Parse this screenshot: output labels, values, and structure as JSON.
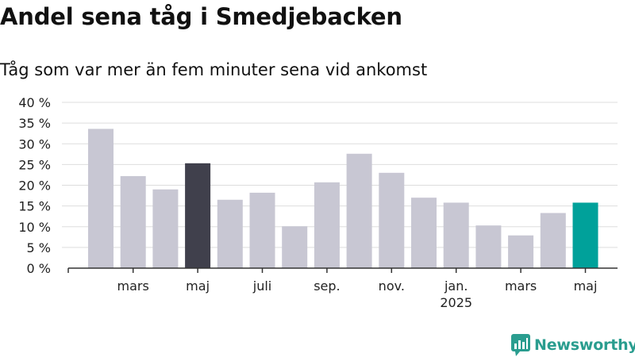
{
  "title": "Andel sena tåg i Smedjebacken",
  "subtitle": "Tåg som var mer än fem minuter sena vid ankomst",
  "brand": "Newsworthy",
  "colors": {
    "bar_default": "#c8c7d3",
    "bar_highlight_dark": "#40404c",
    "bar_highlight_teal": "#00a19a",
    "grid": "#dddddd",
    "axis": "#333333",
    "brand": "#2a9d8f"
  },
  "chart_data": {
    "type": "bar",
    "categories": [
      "2024-02",
      "2024-03",
      "2024-04",
      "2024-05",
      "2024-06",
      "2024-07",
      "2024-08",
      "2024-09",
      "2024-10",
      "2024-11",
      "2024-12",
      "2025-01",
      "2025-02",
      "2025-03",
      "2025-04",
      "2025-05"
    ],
    "values": [
      33.6,
      22.2,
      19.0,
      25.3,
      16.5,
      18.2,
      10.1,
      20.7,
      27.6,
      23.0,
      17.0,
      15.8,
      10.3,
      7.9,
      13.3,
      15.8
    ],
    "highlight": [
      {
        "category": "2024-05",
        "color": "#40404c"
      },
      {
        "category": "2025-05",
        "color": "#00a19a"
      }
    ],
    "ylim": [
      0,
      40
    ],
    "yticks": [
      {
        "value": 0,
        "label": "0 %"
      },
      {
        "value": 5,
        "label": "5 %"
      },
      {
        "value": 10,
        "label": "10 %"
      },
      {
        "value": 15,
        "label": "15 %"
      },
      {
        "value": 20,
        "label": "20 %"
      },
      {
        "value": 25,
        "label": "25 %"
      },
      {
        "value": 30,
        "label": "30 %"
      },
      {
        "value": 35,
        "label": "35 %"
      },
      {
        "value": 40,
        "label": "40 %"
      }
    ],
    "xticks": [
      {
        "category": "2024-03",
        "label": "mars"
      },
      {
        "category": "2024-05",
        "label": "maj"
      },
      {
        "category": "2024-07",
        "label": "juli"
      },
      {
        "category": "2024-09",
        "label": "sep."
      },
      {
        "category": "2024-11",
        "label": "nov."
      },
      {
        "category": "2025-01",
        "label": "jan.",
        "sublabel": "2025"
      },
      {
        "category": "2025-03",
        "label": "mars"
      },
      {
        "category": "2025-05",
        "label": "maj"
      }
    ],
    "grid": true,
    "xlabel": "",
    "ylabel": ""
  }
}
